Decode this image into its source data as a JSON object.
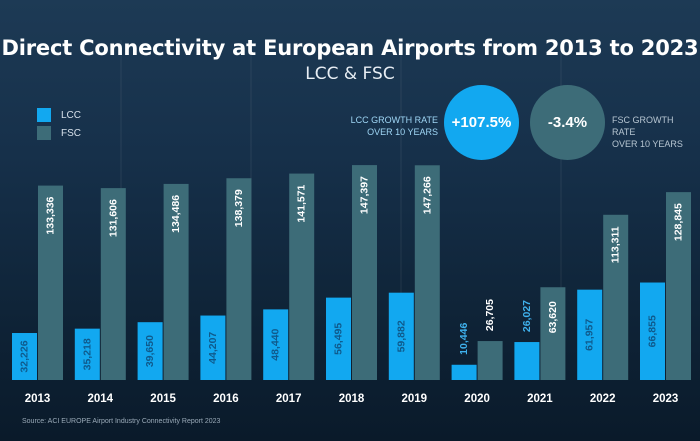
{
  "colors": {
    "lcc": "#12a8f0",
    "fsc": "#3d6c78",
    "lcc_label": "#0f5a8c",
    "fsc_label": "#ffffff",
    "lcc_label_light": "#3fb2ee"
  },
  "header": {
    "title": "Direct Connectivity at European Airports from 2013 to 2023",
    "subtitle": "LCC & FSC"
  },
  "legend": {
    "lcc": "LCC",
    "fsc": "FSC"
  },
  "kpis": {
    "lcc": {
      "label_line1": "LCC GROWTH RATE",
      "label_line2": "OVER 10 YEARS",
      "value": "+107.5%"
    },
    "fsc": {
      "label_line1": "FSC GROWTH RATE",
      "label_line2": "OVER 10 YEARS",
      "value": "-3.4%"
    }
  },
  "source": "Source: ACI EUROPE Airport Industry Connectivity Report 2023",
  "chart_data": {
    "type": "bar",
    "categories": [
      "2013",
      "2014",
      "2015",
      "2016",
      "2017",
      "2018",
      "2019",
      "2020",
      "2021",
      "2022",
      "2023"
    ],
    "series": [
      {
        "name": "LCC",
        "values": [
          32226,
          35218,
          39650,
          44207,
          48440,
          56495,
          59882,
          10446,
          26027,
          61957,
          66855
        ],
        "labels": [
          "32,226",
          "35,218",
          "39,650",
          "44,207",
          "48,440",
          "56,495",
          "59,882",
          "10,446",
          "26,027",
          "61,957",
          "66,855"
        ]
      },
      {
        "name": "FSC",
        "values": [
          133336,
          131606,
          134486,
          138379,
          141571,
          147397,
          147266,
          26705,
          63620,
          113311,
          128845
        ],
        "labels": [
          "133,336",
          "131,606",
          "134,486",
          "138,379",
          "141,571",
          "147,397",
          "147,266",
          "26,705",
          "63,620",
          "113,311",
          "128,845"
        ]
      }
    ],
    "title": "Direct Connectivity at European Airports from 2013 to 2023",
    "subtitle": "LCC & FSC",
    "ylim": [
      0,
      155000
    ],
    "grid": false,
    "legend_position": "top-left"
  }
}
